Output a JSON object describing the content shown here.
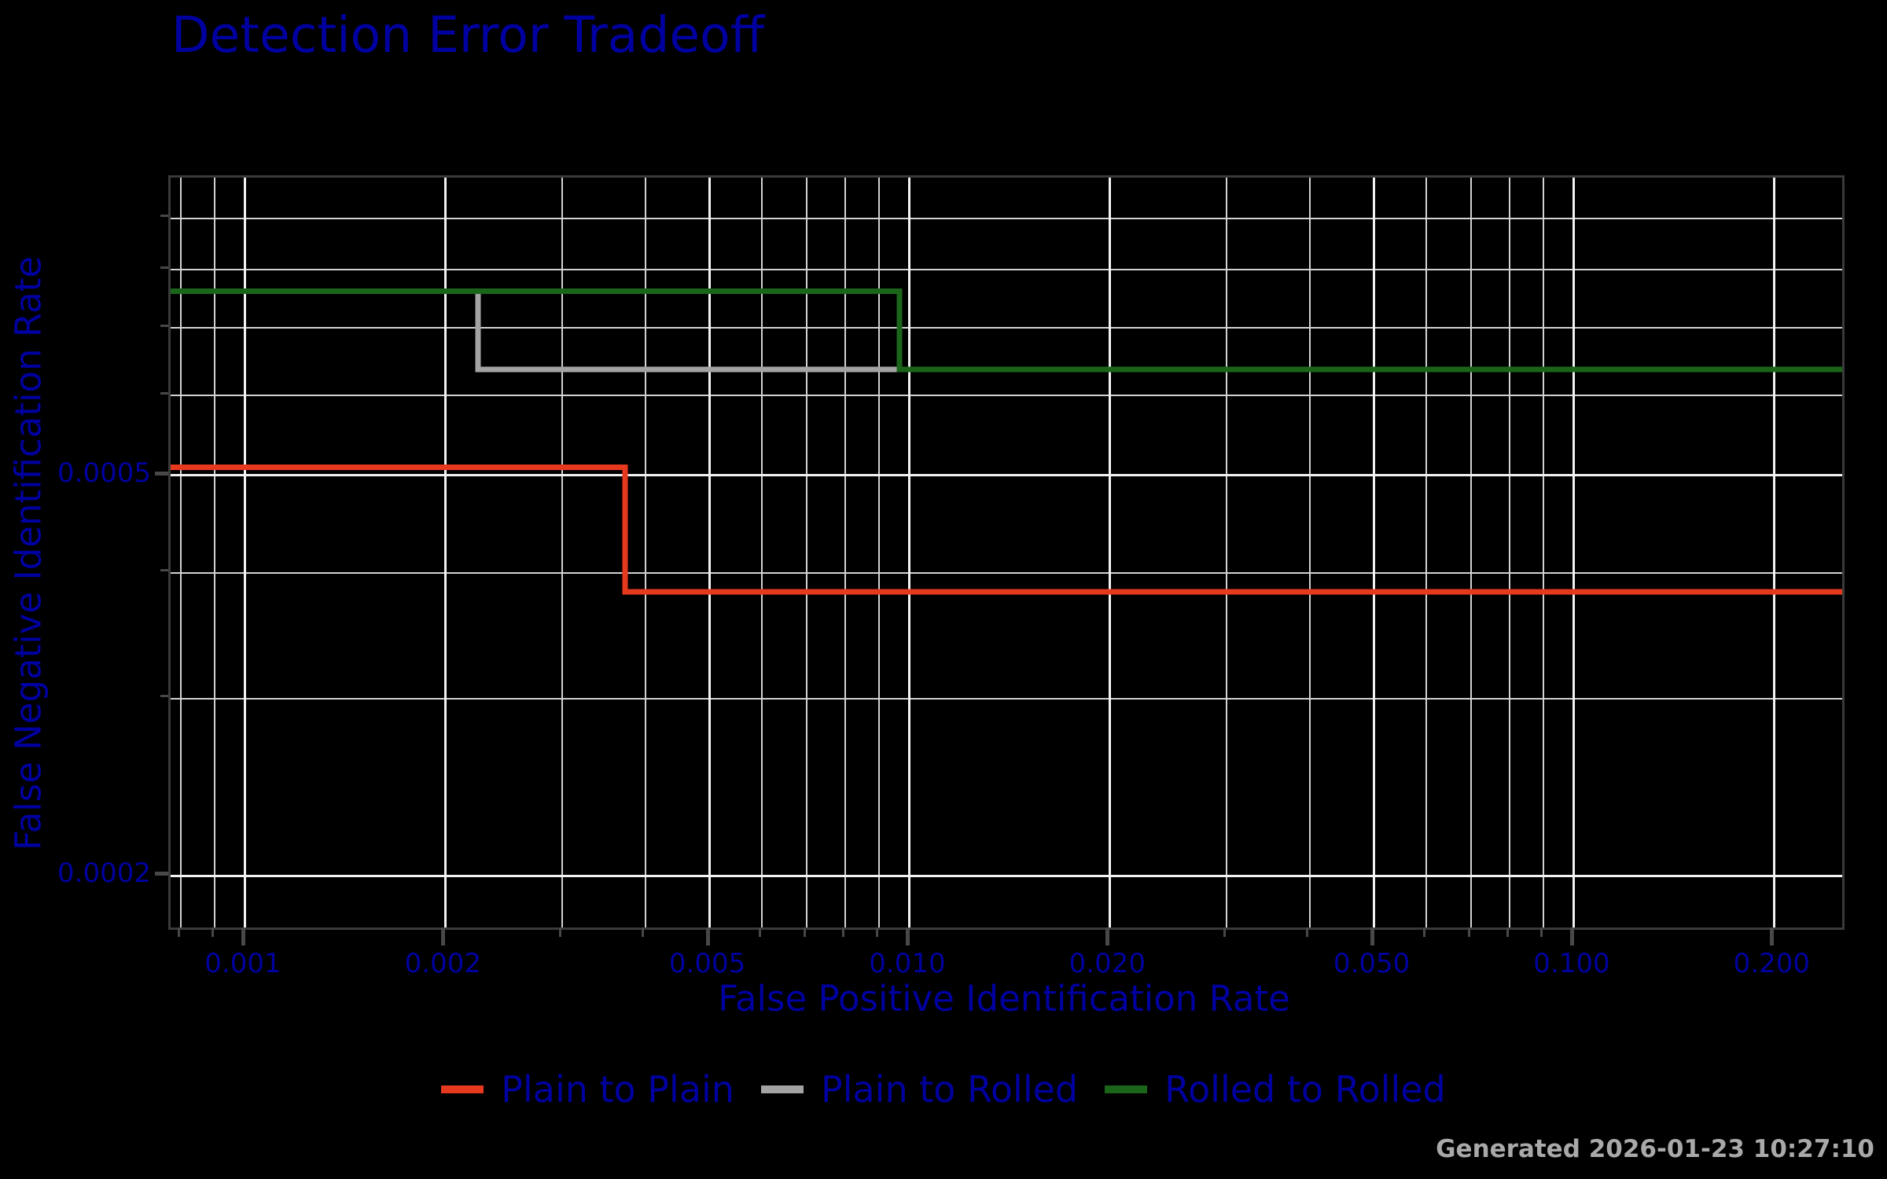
{
  "title": "Detection Error Tradeoff",
  "footer": {
    "generated": "Generated 2026-01-23 10:27:10"
  },
  "colors": {
    "background": "#000000",
    "text": "#0000a0",
    "spine": "#3a3a3a",
    "tick_mark": "#484848",
    "grid_major": "#f2f2f2",
    "grid_minor": "#d2d2d2",
    "timestamp": "#a9a9a9"
  },
  "chart_data": {
    "type": "line",
    "subtype": "step-DET-curves",
    "title": "Detection Error Tradeoff",
    "xlabel": "False Positive Identification Rate",
    "ylabel": "False Negative Identification Rate",
    "x_scale": "log",
    "y_scale": "log",
    "xlim": [
      0.000772,
      0.2533
    ],
    "ylim": [
      0.0001777,
      0.0009877
    ],
    "grid": true,
    "legend_position": "bottom",
    "x_ticks": [
      {
        "value": 0.001,
        "label": "0.001"
      },
      {
        "value": 0.002,
        "label": "0.002"
      },
      {
        "value": 0.005,
        "label": "0.005"
      },
      {
        "value": 0.01,
        "label": "0.010"
      },
      {
        "value": 0.02,
        "label": "0.020"
      },
      {
        "value": 0.05,
        "label": "0.050"
      },
      {
        "value": 0.1,
        "label": "0.100"
      },
      {
        "value": 0.2,
        "label": "0.200"
      }
    ],
    "y_ticks": [
      {
        "value": 0.0005,
        "label": "0.0005"
      },
      {
        "value": 0.0002,
        "label": "0.0002"
      }
    ],
    "x_minor_gridlines": [
      0.0008,
      0.0009,
      0.003,
      0.004,
      0.006,
      0.007,
      0.008,
      0.009,
      0.03,
      0.04,
      0.06,
      0.07,
      0.08,
      0.09
    ],
    "y_minor_gridlines": [
      0.0009,
      0.0008,
      0.0007,
      0.0006,
      0.0004,
      0.0003
    ],
    "series": [
      {
        "name": "Plain to Plain",
        "color": "#e6391e",
        "points": [
          [
            0.000772,
            0.000509
          ],
          [
            0.00373,
            0.000509
          ],
          [
            0.00373,
            0.000383
          ],
          [
            0.2533,
            0.000383
          ]
        ]
      },
      {
        "name": "Plain to Rolled",
        "color": "#a3a3a3",
        "points": [
          [
            0.000772,
            0.000762
          ],
          [
            0.00224,
            0.000762
          ],
          [
            0.00224,
            0.000637
          ],
          [
            0.2533,
            0.000637
          ]
        ]
      },
      {
        "name": "Rolled to Rolled",
        "color": "#1a651a",
        "points": [
          [
            0.000772,
            0.000762
          ],
          [
            0.00965,
            0.000762
          ],
          [
            0.00965,
            0.000637
          ],
          [
            0.2533,
            0.000637
          ]
        ]
      }
    ]
  }
}
